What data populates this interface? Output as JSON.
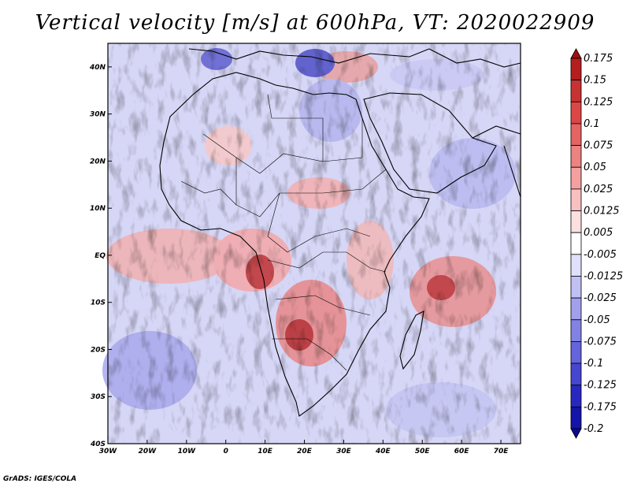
{
  "title": "Vertical velocity [m/s] at 600hPa, VT: 2020022909",
  "map": {
    "lon_range": [
      -30,
      75
    ],
    "lat_range": [
      -40,
      45
    ],
    "x_ticks": [
      {
        "value": -30,
        "label": "30W"
      },
      {
        "value": -20,
        "label": "20W"
      },
      {
        "value": -10,
        "label": "10W"
      },
      {
        "value": 0,
        "label": "0"
      },
      {
        "value": 10,
        "label": "10E"
      },
      {
        "value": 20,
        "label": "20E"
      },
      {
        "value": 30,
        "label": "30E"
      },
      {
        "value": 40,
        "label": "40E"
      },
      {
        "value": 50,
        "label": "50E"
      },
      {
        "value": 60,
        "label": "60E"
      },
      {
        "value": 70,
        "label": "70E"
      }
    ],
    "y_ticks": [
      {
        "value": 40,
        "label": "40N"
      },
      {
        "value": 30,
        "label": "30N"
      },
      {
        "value": 20,
        "label": "20N"
      },
      {
        "value": 10,
        "label": "10N"
      },
      {
        "value": 0,
        "label": "EQ"
      },
      {
        "value": -10,
        "label": "10S"
      },
      {
        "value": -20,
        "label": "20S"
      },
      {
        "value": -30,
        "label": "30S"
      },
      {
        "value": -40,
        "label": "40S"
      }
    ]
  },
  "colorbar": {
    "levels": [
      "0.175",
      "0.15",
      "0.125",
      "0.1",
      "0.075",
      "0.05",
      "0.025",
      "0.0125",
      "0.005",
      "-0.005",
      "-0.0125",
      "-0.025",
      "-0.05",
      "-0.075",
      "-0.1",
      "-0.125",
      "-0.175",
      "-0.2"
    ],
    "colors": [
      "#a01010",
      "#b41e1e",
      "#c83232",
      "#dc4646",
      "#e46464",
      "#ec8282",
      "#f4a0a0",
      "#f8c0c0",
      "#fce0e0",
      "#ffffff",
      "#e0e0fc",
      "#c0c0f4",
      "#a0a0ec",
      "#8282e4",
      "#6464dc",
      "#4646d0",
      "#2828c0",
      "#1414aa",
      "#0a0a96"
    ]
  },
  "credit": "GrADS: IGES/COLA"
}
